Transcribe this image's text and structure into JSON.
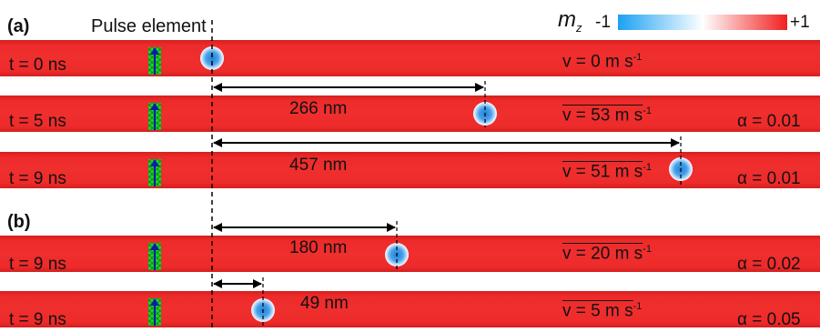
{
  "panels": {
    "a_label": "(a)",
    "b_label": "(b)"
  },
  "pulse_label": "Pulse element",
  "colorbar": {
    "label": "m",
    "label_sub": "z",
    "min_label": "-1",
    "max_label": "+1",
    "colors": {
      "low": "#1aa2f2",
      "mid": "#ffffff",
      "high": "#f21f1f"
    }
  },
  "rows": [
    {
      "time": "t = 0 ns",
      "speed": "v = 0 m s",
      "speed_exp": "-1",
      "avg": false,
      "alpha": ""
    },
    {
      "time": "t = 5 ns",
      "speed": "v = 53 m s",
      "speed_exp": "-1",
      "avg": true,
      "alpha": "α = 0.01"
    },
    {
      "time": "t = 9 ns",
      "speed": "v = 51 m s",
      "speed_exp": "-1",
      "avg": true,
      "alpha": "α = 0.01"
    },
    {
      "time": "t = 9 ns",
      "speed": "v = 20 m s",
      "speed_exp": "-1",
      "avg": true,
      "alpha": "α = 0.02"
    },
    {
      "time": "t = 9 ns",
      "speed": "v = 5 m s",
      "speed_exp": "-1",
      "avg": true,
      "alpha": "α = 0.05"
    }
  ],
  "distances": [
    {
      "label": "266 nm"
    },
    {
      "label": "457 nm"
    },
    {
      "label": "180 nm"
    },
    {
      "label": "49 nm"
    }
  ]
}
